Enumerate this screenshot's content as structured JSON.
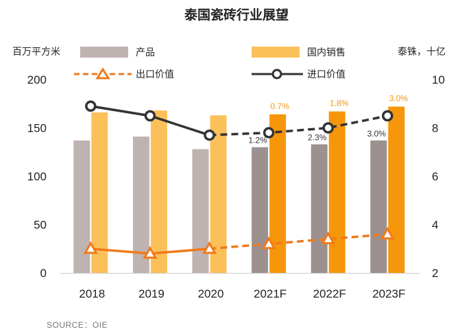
{
  "chart_data": {
    "type": "bar",
    "title": "泰国瓷砖行业展望",
    "left_axis_unit": "百万平方米",
    "right_axis_unit": "泰铢，十亿",
    "categories": [
      "2018",
      "2019",
      "2020",
      "2021F",
      "2022F",
      "2023F"
    ],
    "left_ylim": [
      0,
      200
    ],
    "left_ticks": [
      "0",
      "50",
      "100",
      "150",
      "200"
    ],
    "right_ylim": [
      2,
      10
    ],
    "right_ticks": [
      "2",
      "4",
      "6",
      "8",
      "10"
    ],
    "legend_placement": "top",
    "grid": false,
    "series": [
      {
        "name": "产品",
        "kind": "bar",
        "axis": "left",
        "color": "#bfb3b1",
        "forecast_color": "#9c918f",
        "values": [
          137,
          141,
          128,
          130,
          133,
          137
        ],
        "labels": [
          "",
          "",
          "",
          "1.2%",
          "2.3%",
          "3.0%"
        ]
      },
      {
        "name": "国内销售",
        "kind": "bar",
        "axis": "left",
        "color": "#fcc05a",
        "forecast_color": "#f6960b",
        "values": [
          166,
          168,
          163,
          164,
          167,
          172
        ],
        "labels": [
          "",
          "",
          "",
          "0.7%",
          "1.8%",
          "3.0%"
        ]
      },
      {
        "name": "出口价值",
        "kind": "line",
        "axis": "right",
        "color": "#f07a1a",
        "values": [
          3.0,
          2.8,
          3.0,
          3.2,
          3.4,
          3.6
        ]
      },
      {
        "name": "进口价值",
        "kind": "line",
        "axis": "right",
        "color": "#333333",
        "values": [
          8.9,
          8.5,
          7.7,
          7.8,
          8.0,
          8.5
        ]
      }
    ],
    "source": "SOURCE：OIE"
  }
}
